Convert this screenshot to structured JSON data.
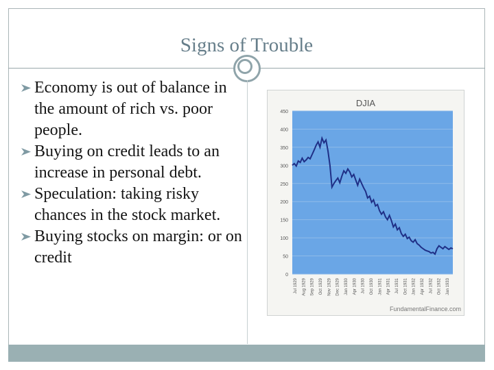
{
  "slide": {
    "title": "Signs of Trouble",
    "bullets": [
      {
        "text": "Economy is out of balance in the amount of rich vs. poor people."
      },
      {
        "text": "Buying on credit leads to an increase in personal debt."
      },
      {
        "text": "Speculation: taking risky chances in the stock market."
      },
      {
        "text": "Buying stocks on margin: or on credit"
      }
    ]
  },
  "colors": {
    "title": "#667e8a",
    "accent": "#9ab0b3",
    "bullet_icon": "#7f9aa3",
    "chart_plot_bg": "#6aa6e6",
    "chart_line": "#1f2f86"
  },
  "chart_data": {
    "type": "line",
    "title": "DJIA",
    "source_label": "FundamentalFinance.com",
    "ylim": [
      0,
      450
    ],
    "yticks": [
      "0",
      "50",
      "100",
      "150",
      "200",
      "250",
      "300",
      "350",
      "400",
      "450"
    ],
    "xticks": [
      "Jul 1929",
      "Aug 1929",
      "Sep 1929",
      "Oct 1929",
      "Nov 1929",
      "Dec 1929",
      "Jan 1930",
      "Apr 1930",
      "Jul 1930",
      "Oct 1930",
      "Jan 1931",
      "Apr 1931",
      "Jul 1931",
      "Oct 1931",
      "Jan 1932",
      "Apr 1932",
      "Jul 1932",
      "Oct 1932",
      "Jan 1933"
    ],
    "series": [
      {
        "values": [
          300,
          305,
          298,
          312,
          308,
          320,
          310,
          315,
          322,
          318,
          330,
          342,
          355,
          365,
          350,
          375,
          362,
          370,
          340,
          300,
          240,
          250,
          258,
          265,
          252,
          270,
          285,
          278,
          290,
          282,
          268,
          275,
          260,
          245,
          262,
          250,
          238,
          228,
          210,
          215,
          198,
          205,
          188,
          192,
          175,
          165,
          172,
          158,
          150,
          162,
          148,
          130,
          138,
          122,
          128,
          112,
          104,
          110,
          98,
          102,
          92,
          88,
          95,
          84,
          80,
          74,
          70,
          66,
          64,
          62,
          58,
          60,
          55,
          70,
          78,
          74,
          70,
          76,
          72,
          68,
          72,
          70
        ]
      }
    ],
    "grid": true
  }
}
